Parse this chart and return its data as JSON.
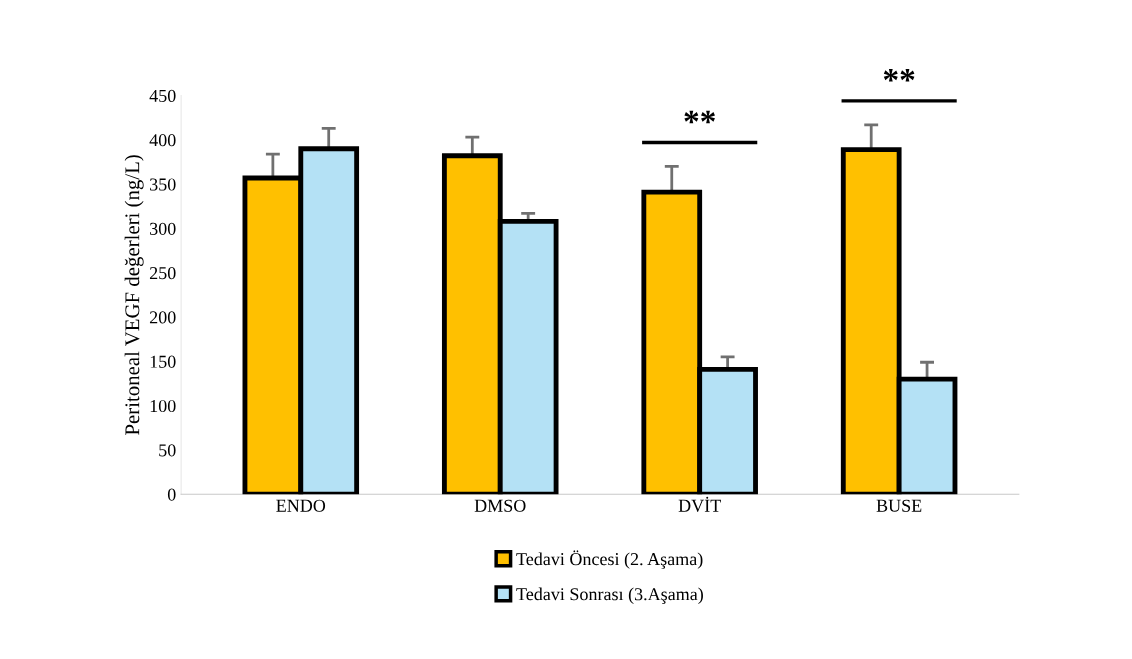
{
  "chart_data": {
    "type": "bar",
    "ylabel": "Peritoneal VEGF değerleri (ng/L)",
    "categories": [
      "ENDO",
      "DMSO",
      "DVİT",
      "BUSE"
    ],
    "series": [
      {
        "name": "Tedavi Öncesi (2. Aşama)",
        "color": "#ffc000",
        "values": [
          357,
          382,
          341,
          389
        ],
        "errors": [
          [
            357,
            384
          ],
          [
            382,
            403
          ],
          [
            341,
            370
          ],
          [
            389,
            417
          ]
        ]
      },
      {
        "name": "Tedavi Sonrası (3.Aşama)",
        "color": "#b4e1f5",
        "values": [
          390,
          308,
          141,
          130
        ],
        "errors": [
          [
            390,
            413
          ],
          [
            308,
            317
          ],
          [
            141,
            155
          ],
          [
            130,
            149
          ]
        ]
      }
    ],
    "ylim": [
      0,
      450
    ],
    "yticks": [
      0,
      50,
      100,
      150,
      200,
      250,
      300,
      350,
      400,
      450
    ],
    "grid": false,
    "legend": "bottom",
    "annotations": [
      "**",
      "**"
    ]
  }
}
